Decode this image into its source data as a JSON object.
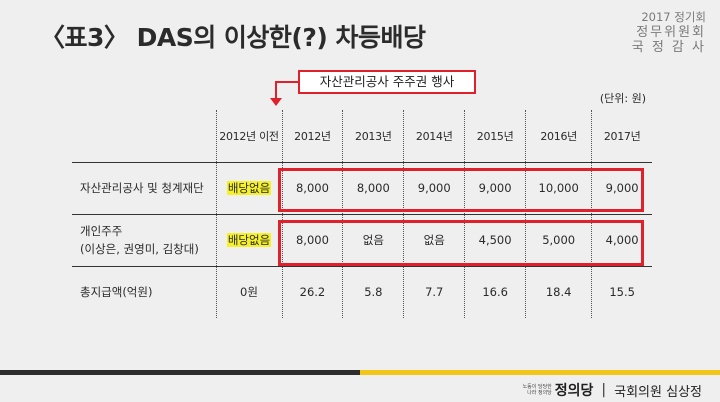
{
  "title": "〈표3〉 DAS의 이상한(?) 차등배당",
  "session": {
    "line1": "2017 정기회",
    "line2": "정무위원회",
    "line3": "국 정 감 사"
  },
  "callout": "자산관리공사 주주권 행사",
  "unit": "(단위: 원)",
  "table": {
    "headers": [
      "",
      "2012년 이전",
      "2012년",
      "2013년",
      "2014년",
      "2015년",
      "2016년",
      "2017년"
    ],
    "rows": [
      {
        "label": "자산관리공사 및 청계재단",
        "label2": "",
        "values": [
          "배당없음",
          "8,000",
          "8,000",
          "9,000",
          "9,000",
          "10,000",
          "9,000"
        ]
      },
      {
        "label": "개인주주",
        "label2": "(이상은, 권영미, 김창대)",
        "values": [
          "배당없음",
          "8,000",
          "없음",
          "없음",
          "4,500",
          "5,000",
          "4,000"
        ]
      },
      {
        "label": "총지급액(억원)",
        "label2": "",
        "values": [
          "0원",
          "26.2",
          "5.8",
          "7.7",
          "16.6",
          "18.4",
          "15.5"
        ]
      }
    ]
  },
  "footer": {
    "logo_small1": "노동이 당당한",
    "logo_small2": "나라 정의당",
    "logo_mark": "정의당",
    "separator": "|",
    "member": "국회의원 심상정"
  },
  "colors": {
    "accent_red": "#e0202a",
    "highlight_yellow": "#f6f12b",
    "footer_yellow": "#f3c61a"
  }
}
